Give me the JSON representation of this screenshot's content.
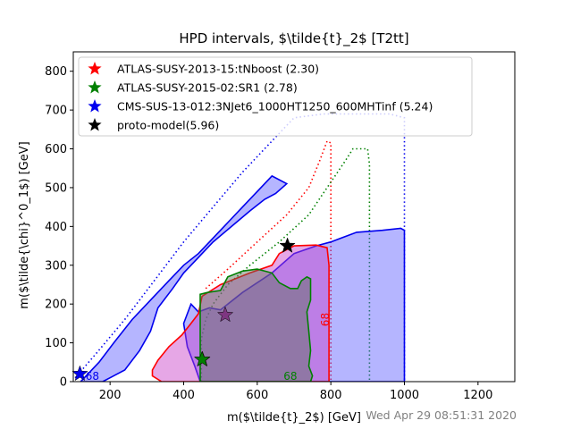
{
  "chart_data": {
    "type": "contour",
    "title": "HPD intervals, $\\tilde{t}_2$ [T2tt]",
    "xlabel": "m($\\tilde{t}_2$) [GeV]",
    "ylabel": "m($\\tilde{\\chi}^0_1$) [GeV]",
    "xlim": [
      100,
      1300
    ],
    "ylim": [
      0,
      850
    ],
    "xticks": [
      200,
      400,
      600,
      800,
      1000,
      1200
    ],
    "yticks": [
      0,
      100,
      200,
      300,
      400,
      500,
      600,
      700,
      800
    ],
    "legend_position": "top-left",
    "timestamp": "Wed Apr 29 08:51:31 2020",
    "colors": {
      "blue": "#0000ee",
      "red": "#ff0000",
      "green": "#008000",
      "black": "#000000"
    },
    "series": [
      {
        "name": "ATLAS-SUSY-2013-15:tNboost (2.30)",
        "color": "#ff0000",
        "star": {
          "x": 451,
          "y": 57
        },
        "contour_label": "68",
        "label_pos": {
          "x": 795,
          "y": 160
        },
        "region_68": [
          [
            315,
            30
          ],
          [
            330,
            55
          ],
          [
            360,
            90
          ],
          [
            395,
            120
          ],
          [
            420,
            150
          ],
          [
            440,
            175
          ],
          [
            450,
            220
          ],
          [
            500,
            250
          ],
          [
            580,
            280
          ],
          [
            640,
            300
          ],
          [
            660,
            330
          ],
          [
            700,
            350
          ],
          [
            760,
            352
          ],
          [
            790,
            345
          ],
          [
            795,
            300
          ],
          [
            795,
            0
          ],
          [
            340,
            0
          ],
          [
            315,
            15
          ]
        ],
        "boundary_95": [
          [
            460,
            240
          ],
          [
            520,
            290
          ],
          [
            600,
            360
          ],
          [
            680,
            430
          ],
          [
            740,
            500
          ],
          [
            770,
            570
          ],
          [
            790,
            620
          ],
          [
            800,
            615
          ],
          [
            800,
            0
          ]
        ]
      },
      {
        "name": "ATLAS-SUSY-2015-02:SR1 (2.78)",
        "color": "#008000",
        "star": {
          "x": 450,
          "y": 57
        },
        "contour_label": "68",
        "label_pos": {
          "x": 690,
          "y": 5
        },
        "region_68": [
          [
            445,
            0
          ],
          [
            445,
            225
          ],
          [
            465,
            230
          ],
          [
            500,
            235
          ],
          [
            520,
            270
          ],
          [
            560,
            285
          ],
          [
            600,
            290
          ],
          [
            640,
            280
          ],
          [
            660,
            255
          ],
          [
            690,
            240
          ],
          [
            710,
            240
          ],
          [
            720,
            260
          ],
          [
            735,
            270
          ],
          [
            745,
            265
          ],
          [
            745,
            210
          ],
          [
            735,
            180
          ],
          [
            740,
            130
          ],
          [
            745,
            80
          ],
          [
            740,
            40
          ],
          [
            750,
            15
          ],
          [
            745,
            0
          ]
        ],
        "boundary_95": [
          [
            448,
            0
          ],
          [
            448,
            110
          ],
          [
            460,
            160
          ],
          [
            480,
            200
          ],
          [
            520,
            250
          ],
          [
            580,
            300
          ],
          [
            660,
            360
          ],
          [
            740,
            430
          ],
          [
            790,
            500
          ],
          [
            840,
            570
          ],
          [
            860,
            600
          ],
          [
            900,
            600
          ],
          [
            905,
            560
          ],
          [
            905,
            0
          ]
        ]
      },
      {
        "name": "CMS-SUS-13-012:3NJet6_1000HT1250_600MHTinf (5.24)",
        "color": "#0000ee",
        "star": {
          "x": 118,
          "y": 20
        },
        "contour_label": "68",
        "label_pos": {
          "x": 152,
          "y": 5
        },
        "region_68": [
          [
            130,
            0
          ],
          [
            180,
            0
          ],
          [
            240,
            30
          ],
          [
            280,
            80
          ],
          [
            310,
            130
          ],
          [
            330,
            190
          ],
          [
            370,
            240
          ],
          [
            400,
            280
          ],
          [
            440,
            320
          ],
          [
            480,
            360
          ],
          [
            530,
            400
          ],
          [
            580,
            440
          ],
          [
            620,
            470
          ],
          [
            650,
            485
          ],
          [
            680,
            510
          ],
          [
            640,
            530
          ],
          [
            600,
            490
          ],
          [
            560,
            450
          ],
          [
            520,
            410
          ],
          [
            480,
            370
          ],
          [
            440,
            330
          ],
          [
            400,
            300
          ],
          [
            360,
            260
          ],
          [
            310,
            210
          ],
          [
            260,
            160
          ],
          [
            210,
            100
          ],
          [
            170,
            50
          ],
          [
            140,
            20
          ],
          [
            120,
            0
          ]
        ],
        "region_68b": [
          [
            420,
            200
          ],
          [
            440,
            180
          ],
          [
            470,
            190
          ],
          [
            500,
            185
          ],
          [
            560,
            230
          ],
          [
            640,
            280
          ],
          [
            700,
            330
          ],
          [
            760,
            350
          ],
          [
            800,
            360
          ],
          [
            870,
            385
          ],
          [
            940,
            390
          ],
          [
            990,
            395
          ],
          [
            1000,
            390
          ],
          [
            1000,
            0
          ],
          [
            445,
            0
          ],
          [
            430,
            40
          ],
          [
            410,
            90
          ],
          [
            400,
            150
          ]
        ],
        "boundary_95": [
          [
            105,
            10
          ],
          [
            160,
            70
          ],
          [
            240,
            160
          ],
          [
            320,
            260
          ],
          [
            400,
            360
          ],
          [
            480,
            450
          ],
          [
            560,
            540
          ],
          [
            640,
            620
          ],
          [
            700,
            680
          ],
          [
            780,
            690
          ],
          [
            960,
            690
          ],
          [
            1000,
            680
          ],
          [
            1000,
            0
          ]
        ]
      },
      {
        "name": "proto-model(5.96)",
        "color": "#000000",
        "star": {
          "x": 682,
          "y": 350
        }
      }
    ],
    "extra_stars": [
      {
        "x": 513,
        "y": 172,
        "color": "#7a2a7a"
      }
    ]
  }
}
